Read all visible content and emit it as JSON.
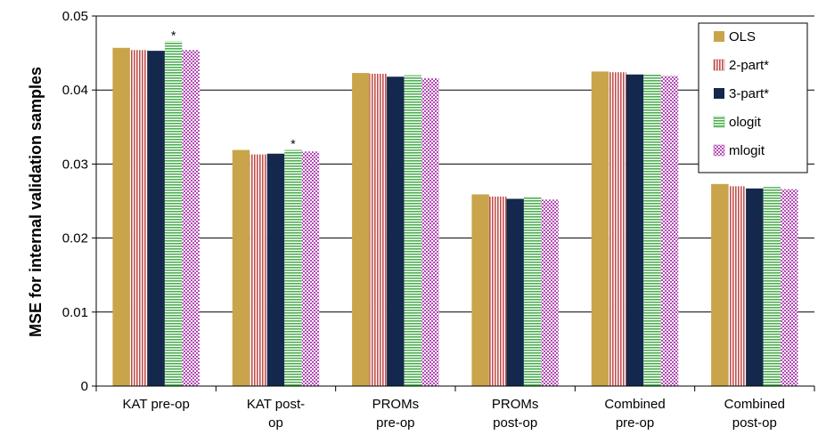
{
  "chart_data": {
    "type": "bar",
    "title": "",
    "xlabel": "",
    "ylabel": "MSE for internal validation samples",
    "ylim": [
      0,
      0.05
    ],
    "yticks": [
      "0",
      "0.01",
      "0.02",
      "0.03",
      "0.04",
      "0.05"
    ],
    "grid": true,
    "legend_position": "top-right",
    "categories": [
      [
        "KAT pre-op"
      ],
      [
        "KAT post-",
        "op"
      ],
      [
        "PROMs",
        "pre-op"
      ],
      [
        "PROMs",
        "post-op"
      ],
      [
        "Combined",
        "pre-op"
      ],
      [
        "Combined",
        "post-op"
      ]
    ],
    "series": [
      {
        "name": "OLS",
        "color": "#C9A44A",
        "pattern": "solid",
        "values": [
          0.0457,
          0.0319,
          0.0423,
          0.0259,
          0.0425,
          0.0273
        ]
      },
      {
        "name": "2-part*",
        "color": "#C0504D",
        "pattern": "vertical-stripes",
        "values": [
          0.0454,
          0.0313,
          0.0422,
          0.0256,
          0.0424,
          0.027
        ]
      },
      {
        "name": "3-part*",
        "color": "#14284E",
        "pattern": "solid",
        "values": [
          0.0453,
          0.0314,
          0.0418,
          0.0253,
          0.0421,
          0.0267
        ]
      },
      {
        "name": "ologit",
        "color": "#4CAF50",
        "pattern": "horizontal-stripes",
        "values": [
          0.0466,
          0.0319,
          0.042,
          0.0255,
          0.0422,
          0.0269
        ]
      },
      {
        "name": "mlogit",
        "color": "#B24BB5",
        "pattern": "checker",
        "values": [
          0.0454,
          0.0317,
          0.0416,
          0.0252,
          0.0419,
          0.0266
        ]
      }
    ],
    "annotations": [
      {
        "text": "*",
        "category_index": 0,
        "series_index": 3
      },
      {
        "text": "*",
        "category_index": 1,
        "series_index": 3
      }
    ]
  }
}
